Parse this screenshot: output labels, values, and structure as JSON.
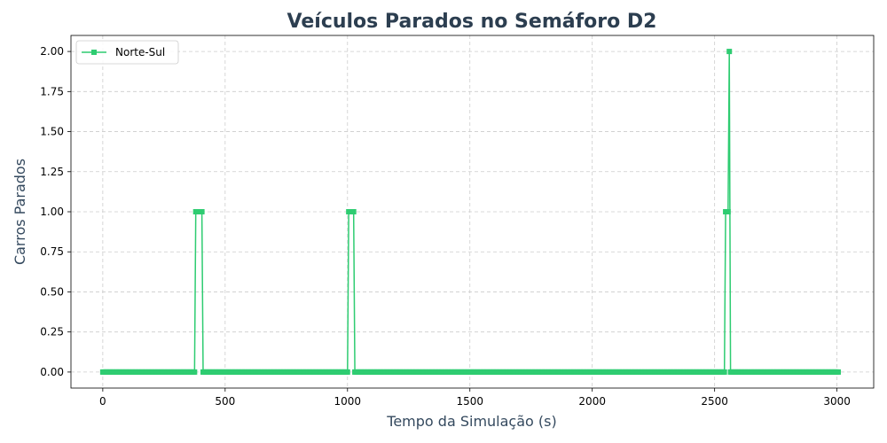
{
  "chart_data": {
    "type": "line",
    "title": "Veículos Parados no Semáforo D2",
    "xlabel": "Tempo da Simulação (s)",
    "ylabel": "Carros Parados",
    "xlim": [
      -130,
      3150
    ],
    "ylim": [
      -0.1,
      2.1
    ],
    "xticks": [
      0,
      500,
      1000,
      1500,
      2000,
      2500,
      3000
    ],
    "yticks": [
      0.0,
      0.25,
      0.5,
      0.75,
      1.0,
      1.25,
      1.5,
      1.75,
      2.0
    ],
    "xtick_labels": [
      "0",
      "500",
      "1000",
      "1500",
      "2000",
      "2500",
      "3000"
    ],
    "ytick_labels": [
      "0.00",
      "0.25",
      "0.50",
      "0.75",
      "1.00",
      "1.25",
      "1.50",
      "1.75",
      "2.00"
    ],
    "grid": true,
    "legend_position": "top-left",
    "sampling_step_s": 5,
    "series": [
      {
        "name": "Norte-Sul",
        "color": "#2ecc71",
        "marker": "square",
        "points": [
          [
            0,
            0
          ],
          [
            375,
            0
          ],
          [
            380,
            1
          ],
          [
            385,
            1
          ],
          [
            390,
            1
          ],
          [
            395,
            1
          ],
          [
            400,
            1
          ],
          [
            405,
            1
          ],
          [
            410,
            0
          ],
          [
            1000,
            0
          ],
          [
            1005,
            1
          ],
          [
            1010,
            1
          ],
          [
            1015,
            1
          ],
          [
            1020,
            1
          ],
          [
            1025,
            1
          ],
          [
            1030,
            0
          ],
          [
            2540,
            0
          ],
          [
            2545,
            1
          ],
          [
            2550,
            1
          ],
          [
            2555,
            1
          ],
          [
            2560,
            2
          ],
          [
            2565,
            0
          ],
          [
            3005,
            0
          ]
        ]
      }
    ]
  }
}
